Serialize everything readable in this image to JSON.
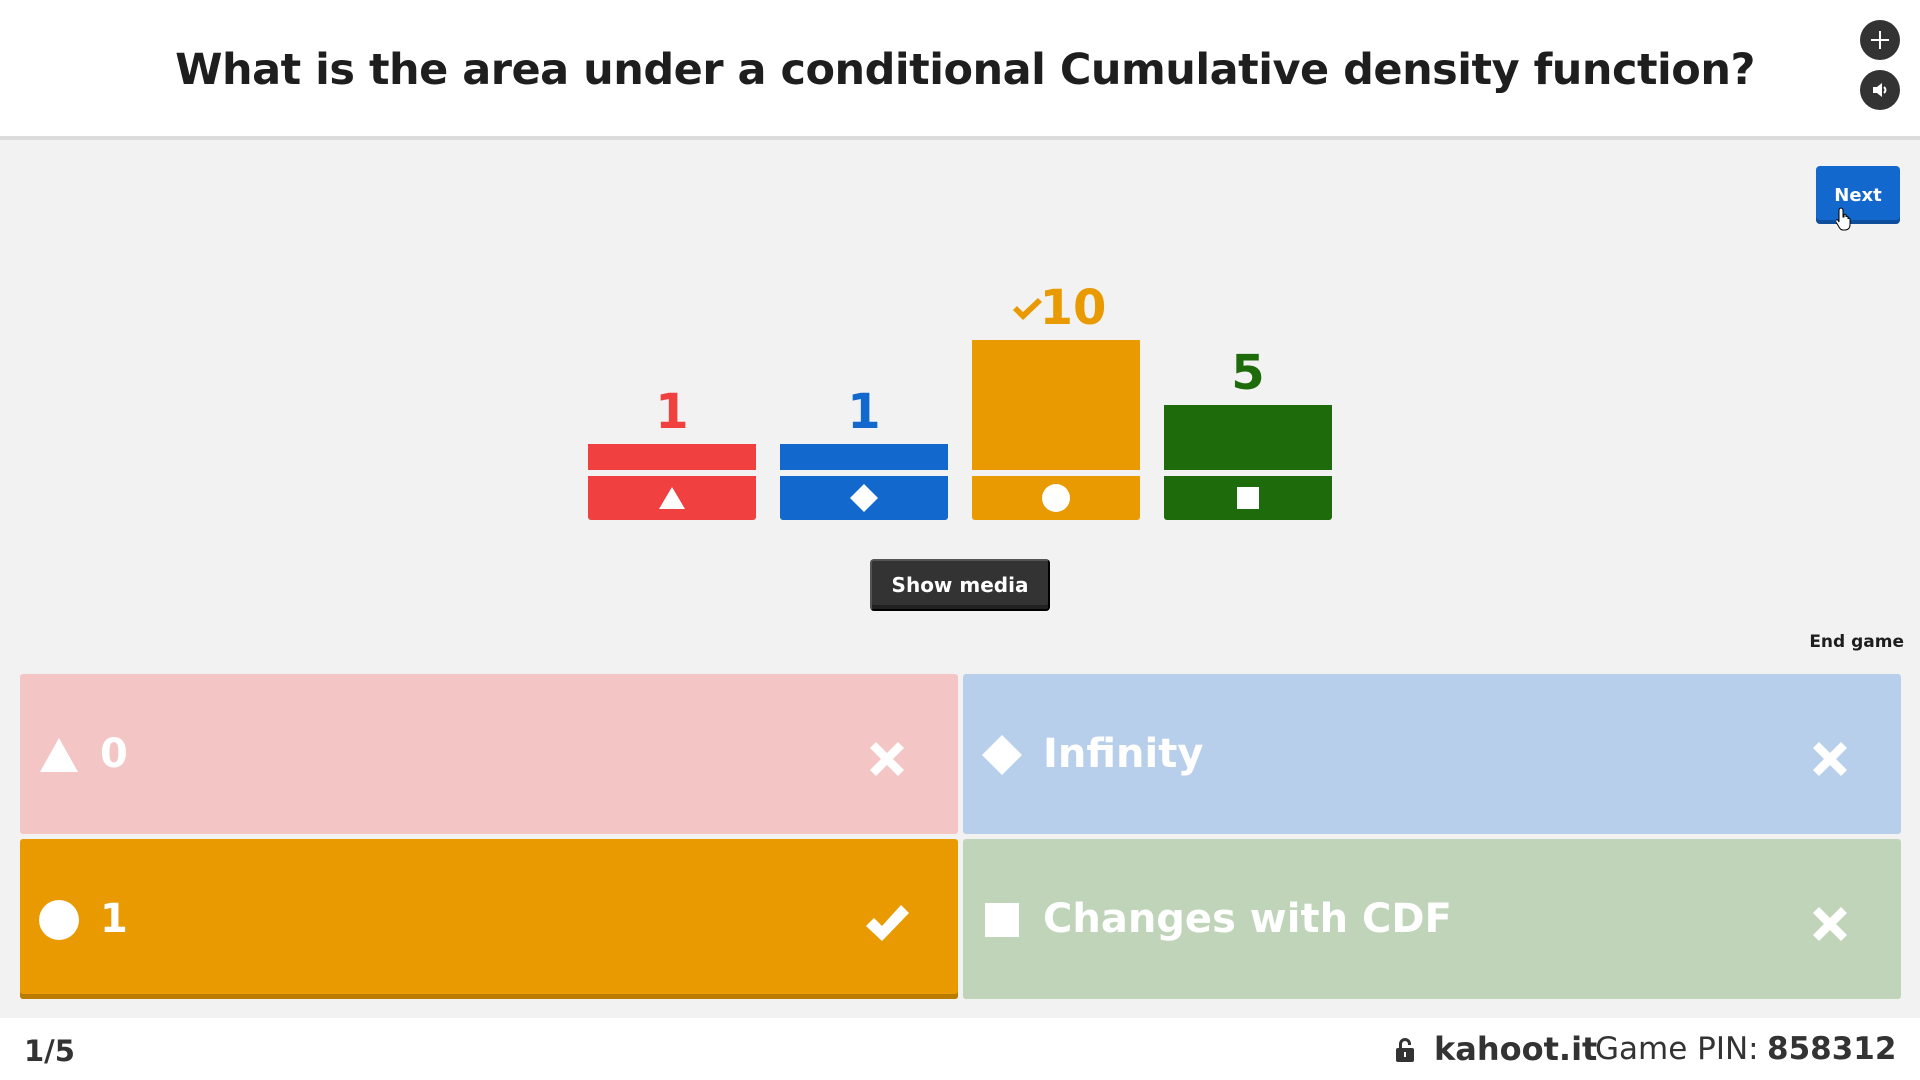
{
  "question": {
    "text": "What is the area under a conditional Cumulative density function?"
  },
  "controls": {
    "next_label": "Next",
    "show_media_label": "Show media",
    "end_game_label": "End game"
  },
  "chart_data": {
    "type": "bar",
    "categories": [
      "0",
      "Infinity",
      "1",
      "Changes with CDF"
    ],
    "values": [
      1,
      1,
      10,
      5
    ],
    "colors": [
      "#f04040",
      "#1368ce",
      "#e89a00",
      "#1e6b0c"
    ],
    "shapes": [
      "triangle",
      "diamond",
      "circle",
      "square"
    ],
    "correct_index": 2,
    "labels": [
      "1",
      "1",
      "10",
      "5"
    ]
  },
  "answers": [
    {
      "label": "0",
      "shape": "triangle",
      "correct": false,
      "bg": "#f4c5c5"
    },
    {
      "label": "Infinity",
      "shape": "diamond",
      "correct": false,
      "bg": "#b8cfeb"
    },
    {
      "label": "1",
      "shape": "circle",
      "correct": true,
      "bg": "#e89a00"
    },
    {
      "label": "Changes with CDF",
      "shape": "square",
      "correct": false,
      "bg": "#c0d4ba"
    }
  ],
  "footer": {
    "progress": "1/5",
    "site": "kahoot.it",
    "pin_label": "Game PIN:",
    "pin_value": "858312"
  },
  "icons": {
    "fullscreen": "fullscreen-icon",
    "sound": "sound-icon",
    "lock": "lock-icon"
  }
}
